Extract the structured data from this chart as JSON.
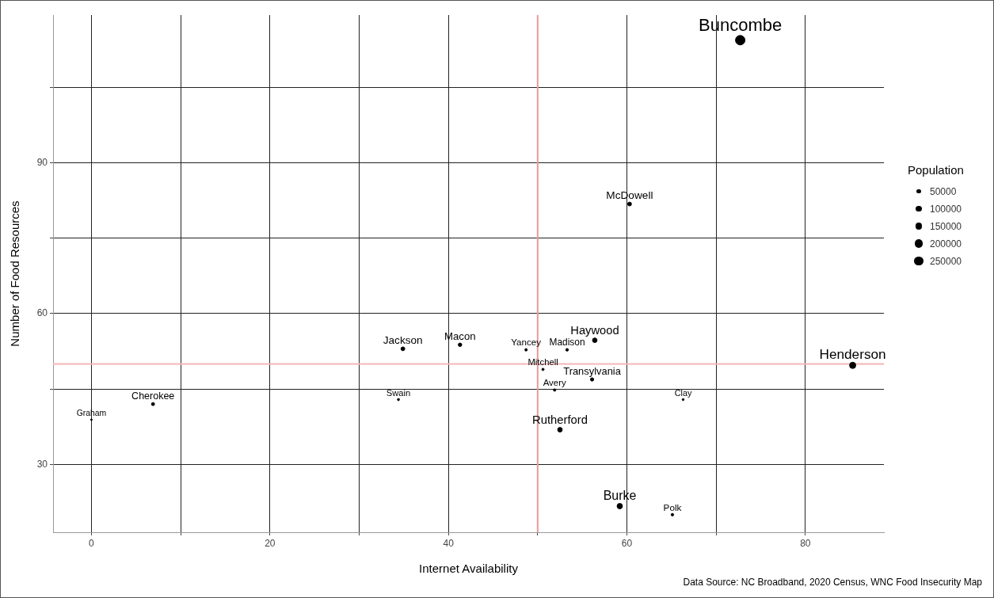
{
  "chart_data": {
    "type": "bubble",
    "xlabel": "Internet Availability",
    "ylabel": "Number of Food Resources",
    "legend_title": "Population",
    "x": [
      72.7,
      60.3,
      85.3,
      56.4,
      34.9,
      41.3,
      48.7,
      53.3,
      50.6,
      56.1,
      51.9,
      34.4,
      66.3,
      52.5,
      59.2,
      65.1,
      6.9,
      0.0
    ],
    "values": [
      114.4,
      81.8,
      49.7,
      54.7,
      53.0,
      53.8,
      52.8,
      52.8,
      48.9,
      46.9,
      44.8,
      42.9,
      42.9,
      36.9,
      21.7,
      20.0,
      42.0,
      38.9
    ],
    "sizes": [
      269000,
      44000,
      116000,
      62000,
      43000,
      37000,
      18000,
      21000,
      15000,
      33000,
      17000,
      14000,
      11000,
      64000,
      87000,
      19000,
      28000,
      8000
    ],
    "size_legend": [
      50000,
      100000,
      150000,
      200000,
      250000
    ],
    "color": "#000000",
    "marker": "circle",
    "annotations": [
      {
        "text": "Buncombe",
        "x": 72.7,
        "y": 114.4
      },
      {
        "text": "McDowell",
        "x": 60.3,
        "y": 81.8
      },
      {
        "text": "Henderson",
        "x": 85.3,
        "y": 49.7
      },
      {
        "text": "Haywood",
        "x": 56.4,
        "y": 54.7
      },
      {
        "text": "Jackson",
        "x": 34.9,
        "y": 53.0
      },
      {
        "text": "Macon",
        "x": 41.3,
        "y": 53.8
      },
      {
        "text": "Yancey",
        "x": 48.7,
        "y": 52.8
      },
      {
        "text": "Madison",
        "x": 53.3,
        "y": 52.8
      },
      {
        "text": "Mitchell",
        "x": 50.6,
        "y": 48.9
      },
      {
        "text": "Transylvania",
        "x": 56.1,
        "y": 46.9
      },
      {
        "text": "Avery",
        "x": 51.9,
        "y": 44.8
      },
      {
        "text": "Swain",
        "x": 34.4,
        "y": 42.9
      },
      {
        "text": "Clay",
        "x": 66.3,
        "y": 42.9
      },
      {
        "text": "Rutherford",
        "x": 52.5,
        "y": 36.9
      },
      {
        "text": "Burke",
        "x": 59.2,
        "y": 21.7
      },
      {
        "text": "Polk",
        "x": 65.1,
        "y": 20.0
      },
      {
        "text": "Cherokee",
        "x": 6.9,
        "y": 42.0
      },
      {
        "text": "Graham",
        "x": 0.0,
        "y": 38.9
      },
      "Data Source: NC Broadband, 2020 Census, WNC Food Insecurity Map"
    ],
    "ref_lines": [
      {
        "axis": "x",
        "value": 50,
        "color": "#e99a9a"
      },
      {
        "axis": "y",
        "value": 50,
        "color": "#f6b6b6"
      }
    ],
    "xlim": [
      -4.3,
      88.8
    ],
    "xticks": [
      0,
      {
        "value": 10,
        "label": null
      },
      20,
      {
        "value": 30,
        "label": null
      },
      40,
      {
        "value": 50,
        "label": null
      },
      60,
      {
        "value": 70,
        "label": null
      },
      80
    ],
    "ylim": [
      16.5,
      119.4
    ],
    "yticks": [
      30,
      {
        "value": 45,
        "label": null
      },
      60,
      {
        "value": 75,
        "label": null
      },
      90,
      {
        "value": 105,
        "label": null
      }
    ],
    "grid": true
  }
}
